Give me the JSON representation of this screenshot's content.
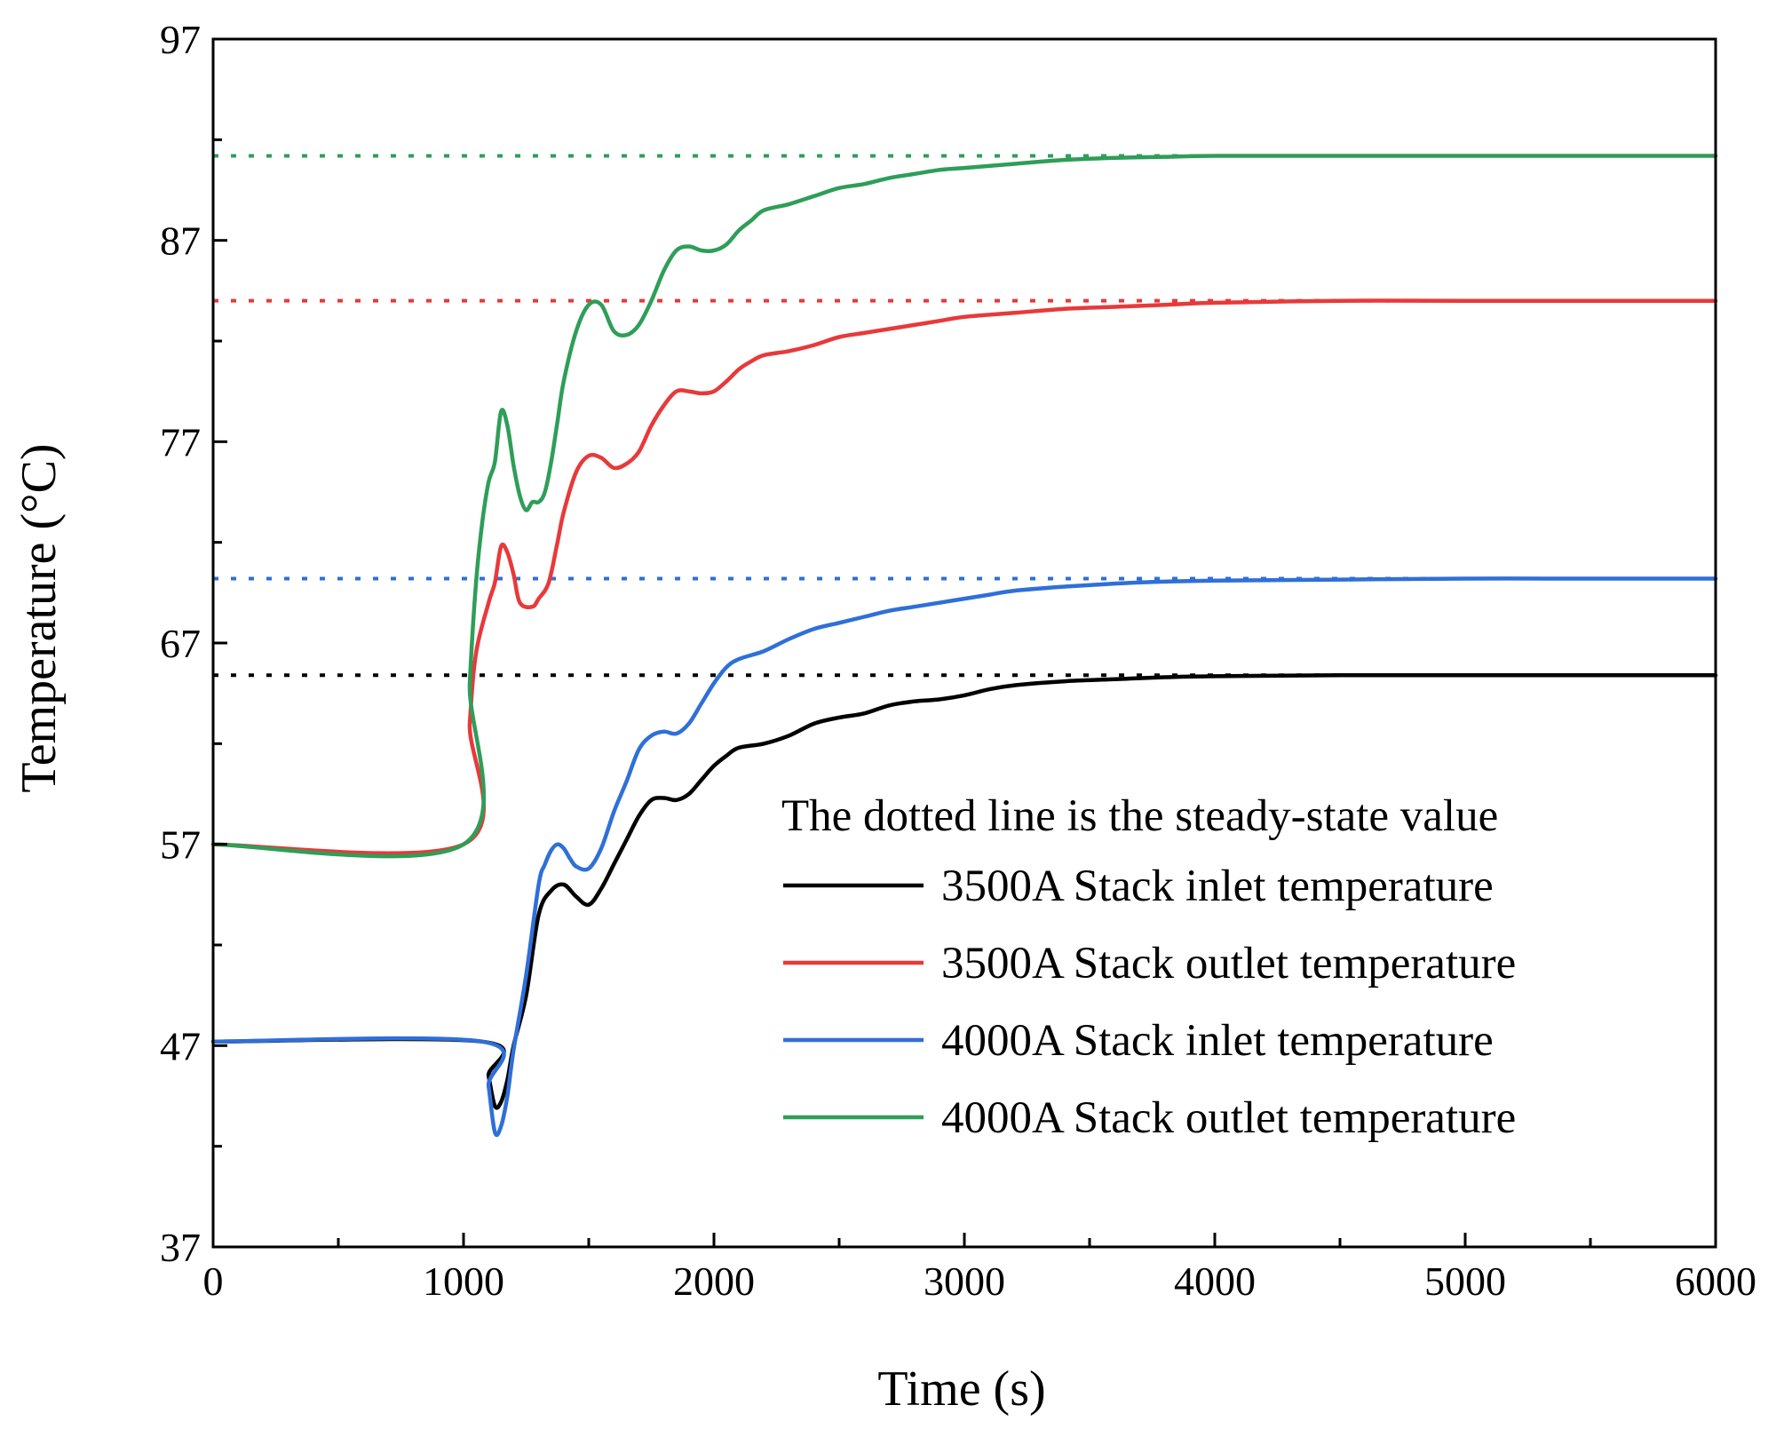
{
  "chart_data": {
    "type": "line",
    "title": "",
    "xlabel": "Time (s)",
    "ylabel": "Temperature (°C)",
    "xlim": [
      0,
      6000
    ],
    "ylim": [
      37,
      97
    ],
    "xticks": [
      0,
      1000,
      2000,
      3000,
      4000,
      5000,
      6000
    ],
    "yticks": [
      37,
      47,
      57,
      67,
      77,
      87,
      97
    ],
    "xtick_labels": [
      "0",
      "1000",
      "2000",
      "3000",
      "4000",
      "5000",
      "6000"
    ],
    "ytick_labels": [
      "37",
      "47",
      "57",
      "67",
      "77",
      "87",
      "97"
    ],
    "legend_note": "The dotted line is the steady-state value",
    "legend_position": "bottom-right",
    "series": [
      {
        "name": "3500A Stack inlet temperature",
        "color": "#000000",
        "steady_state": 65.4,
        "x": [
          0,
          1075,
          1100,
          1125,
          1150,
          1175,
          1200,
          1250,
          1300,
          1350,
          1400,
          1450,
          1500,
          1550,
          1600,
          1650,
          1700,
          1750,
          1800,
          1850,
          1900,
          1950,
          2000,
          2050,
          2100,
          2200,
          2300,
          2400,
          2500,
          2600,
          2700,
          2800,
          2900,
          3000,
          3100,
          3200,
          3400,
          3600,
          3800,
          4000,
          4500,
          5000,
          5500,
          6000
        ],
        "y": [
          47.2,
          47.2,
          45.5,
          44.0,
          44.2,
          45.3,
          47.0,
          49.5,
          53.5,
          54.7,
          55.0,
          54.4,
          54.0,
          54.8,
          56.0,
          57.2,
          58.4,
          59.2,
          59.3,
          59.2,
          59.5,
          60.2,
          60.9,
          61.4,
          61.8,
          62.0,
          62.4,
          63.0,
          63.3,
          63.5,
          63.9,
          64.1,
          64.2,
          64.4,
          64.7,
          64.9,
          65.1,
          65.2,
          65.3,
          65.35,
          65.4,
          65.4,
          65.4,
          65.4
        ]
      },
      {
        "name": "3500A Stack outlet temperature",
        "color": "#e8393a",
        "steady_state": 84.0,
        "x": [
          0,
          1000,
          1025,
          1050,
          1100,
          1125,
          1150,
          1175,
          1200,
          1225,
          1275,
          1300,
          1340,
          1375,
          1400,
          1450,
          1500,
          1550,
          1600,
          1650,
          1700,
          1750,
          1800,
          1850,
          1900,
          1950,
          2000,
          2050,
          2100,
          2150,
          2200,
          2300,
          2400,
          2500,
          2600,
          2700,
          2800,
          2900,
          3000,
          3200,
          3400,
          3600,
          3800,
          4000,
          4500,
          5000,
          6000
        ],
        "y": [
          57.0,
          57.0,
          63.0,
          66.5,
          69.0,
          70.0,
          71.8,
          71.5,
          70.4,
          69.0,
          68.8,
          69.2,
          70.0,
          72.0,
          73.5,
          75.5,
          76.3,
          76.2,
          75.7,
          75.9,
          76.5,
          77.8,
          78.8,
          79.5,
          79.5,
          79.4,
          79.5,
          80.0,
          80.6,
          81.0,
          81.3,
          81.5,
          81.8,
          82.2,
          82.4,
          82.6,
          82.8,
          83.0,
          83.2,
          83.4,
          83.6,
          83.7,
          83.8,
          83.9,
          84.0,
          84.0,
          84.0
        ]
      },
      {
        "name": "4000A Stack inlet temperature",
        "color": "#2f6fd8",
        "steady_state": 70.2,
        "x": [
          0,
          1075,
          1100,
          1125,
          1150,
          1175,
          1200,
          1250,
          1300,
          1325,
          1350,
          1375,
          1400,
          1425,
          1450,
          1500,
          1550,
          1600,
          1650,
          1700,
          1750,
          1800,
          1850,
          1900,
          1950,
          2000,
          2050,
          2100,
          2200,
          2300,
          2400,
          2500,
          2600,
          2700,
          2800,
          2900,
          3000,
          3100,
          3200,
          3400,
          3600,
          3800,
          4000,
          4500,
          5000,
          5500,
          6000
        ],
        "y": [
          47.2,
          47.2,
          45.0,
          42.7,
          43.0,
          44.5,
          46.8,
          50.5,
          55.0,
          56.0,
          56.7,
          57.0,
          56.8,
          56.3,
          55.9,
          55.8,
          56.8,
          58.6,
          60.1,
          61.7,
          62.4,
          62.6,
          62.5,
          63.0,
          64.0,
          65.0,
          65.8,
          66.2,
          66.6,
          67.2,
          67.7,
          68.0,
          68.3,
          68.6,
          68.8,
          69.0,
          69.2,
          69.4,
          69.6,
          69.8,
          69.95,
          70.05,
          70.1,
          70.15,
          70.2,
          70.2,
          70.2
        ]
      },
      {
        "name": "4000A Stack outlet temperature",
        "color": "#2e9e58",
        "steady_state": 91.2,
        "x": [
          0,
          1000,
          1025,
          1050,
          1075,
          1100,
          1125,
          1150,
          1175,
          1200,
          1225,
          1250,
          1275,
          1300,
          1325,
          1350,
          1375,
          1400,
          1450,
          1500,
          1550,
          1600,
          1650,
          1700,
          1750,
          1800,
          1850,
          1900,
          1950,
          2000,
          2050,
          2100,
          2150,
          2200,
          2300,
          2400,
          2500,
          2600,
          2700,
          2800,
          2900,
          3000,
          3200,
          3400,
          3600,
          3800,
          4000,
          4500,
          5000,
          6000
        ],
        "y": [
          57.0,
          57.0,
          65.0,
          70.0,
          73.0,
          75.0,
          76.0,
          78.5,
          77.8,
          75.8,
          74.3,
          73.6,
          74.0,
          74.0,
          74.5,
          76.0,
          78.0,
          80.0,
          82.5,
          83.8,
          83.8,
          82.5,
          82.3,
          82.8,
          84.0,
          85.5,
          86.5,
          86.7,
          86.5,
          86.5,
          86.8,
          87.5,
          88.0,
          88.5,
          88.8,
          89.2,
          89.6,
          89.8,
          90.1,
          90.3,
          90.5,
          90.6,
          90.8,
          91.0,
          91.1,
          91.15,
          91.2,
          91.2,
          91.2,
          91.2
        ]
      }
    ]
  }
}
